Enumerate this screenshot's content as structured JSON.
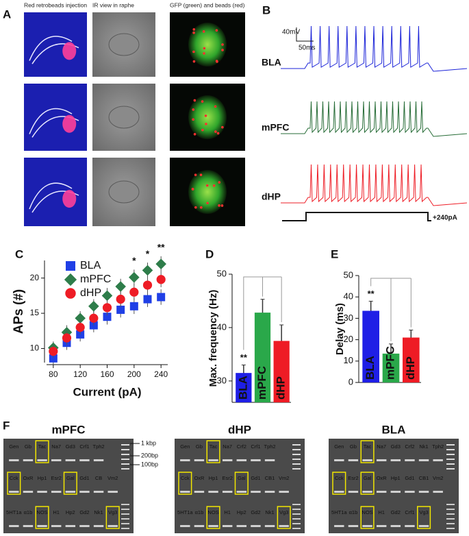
{
  "panel_labels": [
    "A",
    "B",
    "C",
    "D",
    "E",
    "F"
  ],
  "panel_a": {
    "column_headers": [
      "Red retrobeads injection",
      "IR view in raphe",
      "GFP (green) and beads (red)"
    ]
  },
  "panel_b": {
    "scale_voltage": "40mV",
    "scale_time": "50ms",
    "traces": [
      "BLA",
      "mPFC",
      "dHP"
    ],
    "current_step": "+240pA"
  },
  "chart_data": [
    {
      "type": "scatter",
      "xlabel": "Current (pA)",
      "ylabel": "APs (#)",
      "x": [
        80,
        100,
        120,
        140,
        160,
        180,
        200,
        220,
        240
      ],
      "series": [
        {
          "name": "BLA",
          "color": "#1f3fe6",
          "marker": "square",
          "values": [
            8.6,
            10.8,
            12.0,
            13.3,
            14.5,
            15.5,
            16.0,
            17.0,
            17.3
          ],
          "errors": [
            0.9,
            1.0,
            1.0,
            1.0,
            1.1,
            1.1,
            1.1,
            1.1,
            1.1
          ]
        },
        {
          "name": "mPFC",
          "color": "#2e7d4a",
          "marker": "diamond",
          "values": [
            10.1,
            12.3,
            14.3,
            16.0,
            17.5,
            18.8,
            20.1,
            21.1,
            22.0
          ],
          "errors": [
            0.9,
            1.0,
            1.0,
            1.0,
            1.1,
            1.1,
            1.1,
            1.1,
            1.1
          ]
        },
        {
          "name": "dHP",
          "color": "#ee1c25",
          "marker": "circle",
          "values": [
            9.6,
            11.5,
            13.0,
            14.3,
            15.8,
            17.0,
            18.0,
            19.0,
            19.8
          ],
          "errors": [
            0.9,
            1.0,
            1.0,
            1.0,
            1.1,
            1.1,
            1.1,
            1.1,
            1.1
          ]
        }
      ],
      "xlim": [
        70,
        250
      ],
      "xticks": [
        80,
        120,
        160,
        200,
        240
      ],
      "ylim": [
        8,
        22.5
      ],
      "yticks": [
        10,
        15,
        20
      ],
      "legend": "upper left",
      "annotations": [
        {
          "x": 200,
          "text": "*"
        },
        {
          "x": 220,
          "text": "*"
        },
        {
          "x": 240,
          "text": "**"
        }
      ]
    },
    {
      "type": "bar",
      "ylabel": "Max. frequency  (Hz)",
      "categories": [
        "BLA",
        "mPFC",
        "dHP"
      ],
      "values": [
        31.5,
        42.8,
        37.5
      ],
      "errors": [
        1.5,
        2.5,
        3.0
      ],
      "colors": [
        "#1f1fe6",
        "#2aa84a",
        "#ee1c25"
      ],
      "ylim": [
        26,
        50
      ],
      "yticks": [
        30,
        40,
        50
      ],
      "annotations": [
        {
          "category": "BLA",
          "text": "**"
        }
      ]
    },
    {
      "type": "bar",
      "ylabel": "Delay (ms)",
      "categories": [
        "BLA",
        "mPFC",
        "dHP"
      ],
      "values": [
        33.5,
        13.5,
        21.0
      ],
      "errors": [
        4.5,
        4.5,
        3.5
      ],
      "colors": [
        "#1f1fe6",
        "#2aa84a",
        "#ee1c25"
      ],
      "ylim": [
        0,
        50
      ],
      "yticks": [
        0,
        10,
        20,
        30,
        40,
        50
      ],
      "annotations": [
        {
          "category": "BLA",
          "text": "**"
        }
      ]
    }
  ],
  "panel_f": {
    "ladder": [
      "1 kbp",
      "200bp",
      "100bp"
    ],
    "gels": [
      {
        "title": "mPFC",
        "rows": [
          [
            "Gen",
            "Gb",
            "Tac",
            "Na7",
            "Gd3",
            "Crf1",
            "Tph2"
          ],
          [
            "Cck",
            "OxR",
            "Hp1",
            "Esr2",
            "Gal",
            "Gd1",
            "CB",
            "Vm2"
          ],
          [
            "5HT1a",
            "α1b",
            "NOS",
            "H1",
            "Hp2",
            "Gd2",
            "Nk1",
            "Vg3"
          ]
        ]
      },
      {
        "title": "dHP",
        "rows": [
          [
            "Gen",
            "Gb",
            "Tac",
            "Na7",
            "Crf2",
            "Crf1",
            "Tph2"
          ],
          [
            "Cck",
            "OxR",
            "Hp1",
            "Esr2",
            "Gal",
            "Gd1",
            "CB1",
            "Vm2"
          ],
          [
            "5HT1a",
            "α1b",
            "NOS",
            "H1",
            "Hp2",
            "Gd2",
            "Nk1",
            "Vg3"
          ]
        ]
      },
      {
        "title": "BLA",
        "rows": [
          [
            "Gen",
            "Gb",
            "Tac",
            "Na7",
            "Gd3",
            "Crf2",
            "Nk1",
            "Tph2"
          ],
          [
            "Cck",
            "Esr2",
            "Gal",
            "OxR",
            "Hp1",
            "Gd1",
            "CB1",
            "Vm2"
          ],
          [
            "5HT1a",
            "α1b",
            "NOS",
            "H1",
            "Gd2",
            "Crf1",
            "Vg3"
          ]
        ]
      }
    ]
  }
}
